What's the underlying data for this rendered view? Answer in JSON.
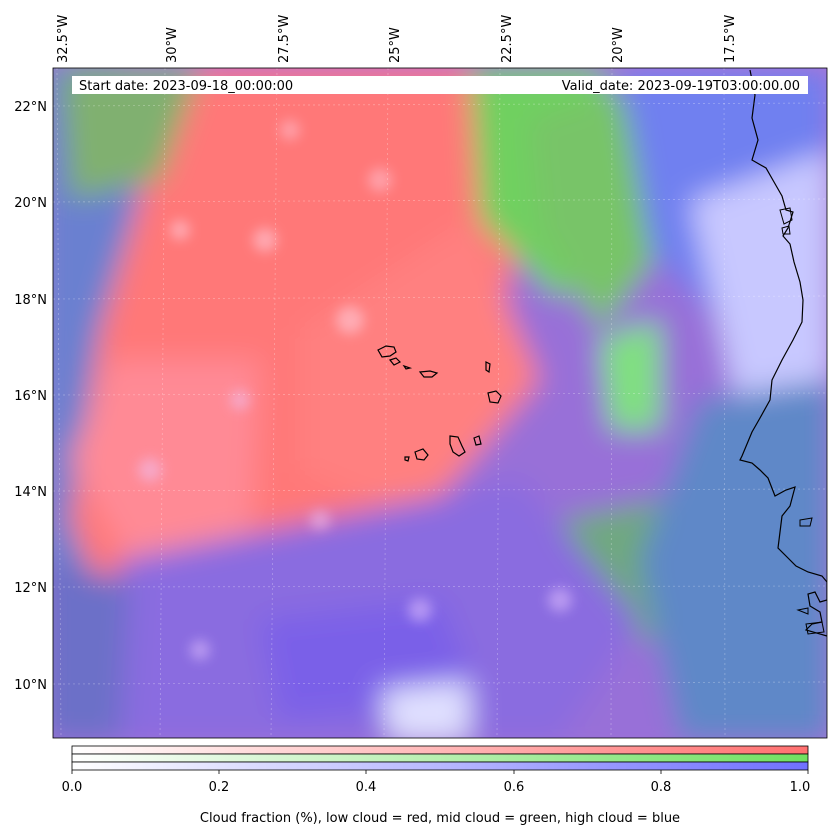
{
  "map": {
    "start_date": "Start date: 2023-09-18_00:00:00",
    "valid_date": "Valid_date: 2023-09-19T03:00:00.00",
    "lon_labels": [
      "32.5°W",
      "30°W",
      "27.5°W",
      "25°W",
      "22.5°W",
      "20°W",
      "17.5°W"
    ],
    "lat_labels": [
      "22°N",
      "20°N",
      "18°N",
      "16°N",
      "14°N",
      "12°N",
      "10°N"
    ]
  },
  "colorbar": {
    "ticks": [
      "0.0",
      "0.2",
      "0.4",
      "0.6",
      "0.8",
      "1.0"
    ],
    "caption": "Cloud fraction (%), low cloud = red, mid cloud = green, high cloud = blue",
    "colors": {
      "low": "#ff7070",
      "mid": "#70e060",
      "high": "#7070ff"
    }
  }
}
